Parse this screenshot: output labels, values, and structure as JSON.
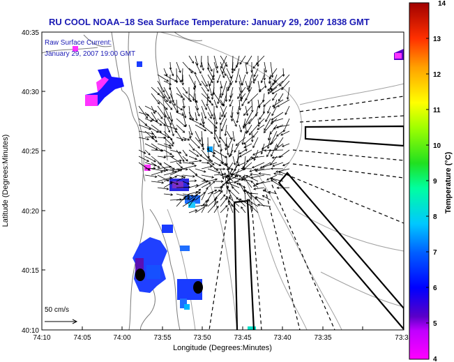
{
  "title": "RU COOL  NOAA–18  Sea Surface Temperature:  January 29, 2007 1838 GMT",
  "annotation": {
    "line1": "Raw Surface Current:",
    "line2": "January 29, 2007 19:00 GMT"
  },
  "scale_label": "50 cm/s",
  "axes": {
    "xlabel": "Longitude (Degrees:Minutes)",
    "ylabel": "Latitude (Degrees:Minutes)",
    "xticks": [
      "74:10",
      "74:05",
      "74:00",
      "73:55",
      "73:50",
      "73:45",
      "73:40",
      "73:35",
      "73:3"
    ],
    "yticks": [
      "40:35",
      "40:30",
      "40:25",
      "40:20",
      "40:15",
      "40:10"
    ]
  },
  "colorbar": {
    "label": "Temperature (°C)",
    "ticks": [
      "14",
      "13",
      "12",
      "11",
      "10",
      "9",
      "8",
      "7",
      "6",
      "5",
      "4"
    ],
    "min": 4,
    "max": 14
  },
  "colors": {
    "title": "#1a1ab4",
    "land_lines": "#8a8a8a",
    "bathymetry": "#a0a0a0"
  }
}
